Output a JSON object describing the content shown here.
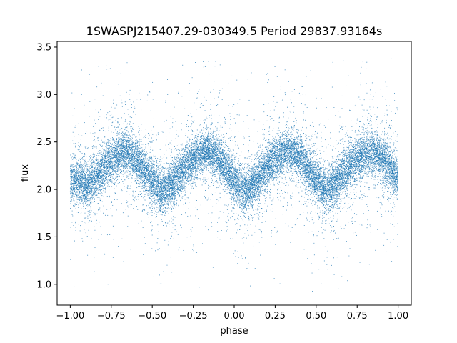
{
  "chart_data": {
    "type": "scatter",
    "title": "1SWASPJ215407.29-030349.5 Period 29837.93164s",
    "xlabel": "phase",
    "ylabel": "flux",
    "xlim": [
      -1.08,
      1.08
    ],
    "ylim": [
      0.78,
      3.56
    ],
    "x_ticks": [
      -1.0,
      -0.75,
      -0.5,
      -0.25,
      0.0,
      0.25,
      0.5,
      0.75,
      1.0
    ],
    "x_tick_labels": [
      "−1.00",
      "−0.75",
      "−0.50",
      "−0.25",
      "0.00",
      "0.25",
      "0.50",
      "0.75",
      "1.00"
    ],
    "y_ticks": [
      1.0,
      1.5,
      2.0,
      2.5,
      3.0,
      3.5
    ],
    "y_tick_labels": [
      "1.0",
      "1.5",
      "2.0",
      "2.5",
      "3.0",
      "3.5"
    ],
    "grid": false,
    "marker_color": "#1f77b4",
    "series": [
      {
        "trend": {
          "x": [
            -1.0,
            -0.9,
            -0.8,
            -0.7,
            -0.66,
            -0.6,
            -0.5,
            -0.44,
            -0.4,
            -0.3,
            -0.2,
            -0.16,
            -0.1,
            0.0,
            0.06,
            0.1,
            0.2,
            0.3,
            0.34,
            0.4,
            0.5,
            0.56,
            0.6,
            0.7,
            0.8,
            0.84,
            0.9,
            1.0
          ],
          "y": [
            2.11,
            2.04,
            2.21,
            2.37,
            2.4,
            2.33,
            2.09,
            1.97,
            2.01,
            2.23,
            2.38,
            2.4,
            2.34,
            2.09,
            1.99,
            2.02,
            2.24,
            2.38,
            2.4,
            2.34,
            2.09,
            1.98,
            2.02,
            2.24,
            2.38,
            2.4,
            2.34,
            2.11
          ]
        },
        "points_shown": 22000,
        "core_spread": 0.11,
        "y_range": [
          0.9,
          3.48
        ]
      }
    ]
  }
}
